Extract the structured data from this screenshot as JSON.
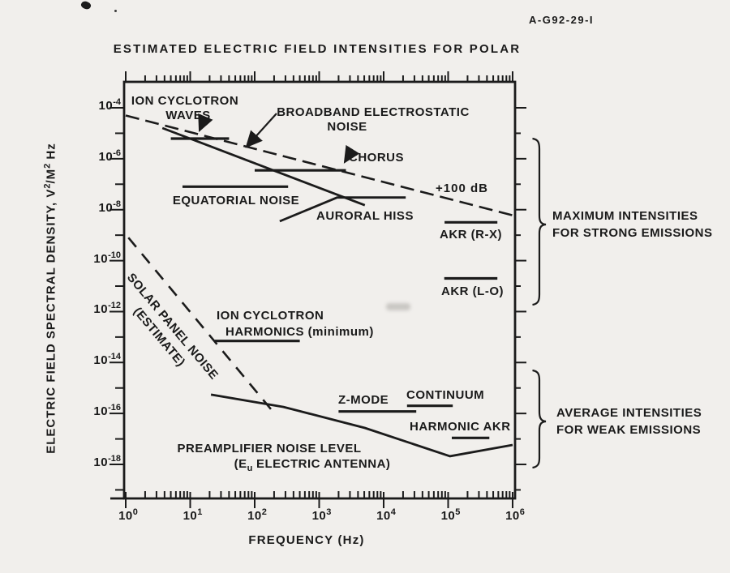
{
  "figure_id": "A-G92-29-I",
  "title": "ESTIMATED ELECTRIC FIELD INTENSITIES FOR POLAR",
  "axes": {
    "base": "10",
    "x": {
      "label": "FREQUENCY (Hz)",
      "tick_exponents": [
        0,
        1,
        2,
        3,
        4,
        5,
        6
      ]
    },
    "y": {
      "label_parts": [
        [
          "t",
          "ELECTRIC FIELD SPECTRAL DENSITY,  V"
        ],
        [
          "sup",
          "2"
        ],
        [
          "t",
          "/M"
        ],
        [
          "sup",
          "2"
        ],
        [
          "t",
          " Hz"
        ]
      ],
      "tick_exponents": [
        -4,
        -6,
        -8,
        -10,
        -12,
        -14,
        -16,
        -18
      ],
      "minor_exponents": [
        -5,
        -7,
        -9,
        -11,
        -13,
        -15,
        -17,
        -19
      ]
    }
  },
  "annotations": {
    "ion_cyclotron_waves_1": "ION CYCLOTRON",
    "ion_cyclotron_waves_2": "WAVES",
    "broadband_1": "BROADBAND ELECTROSTATIC",
    "broadband_2": "NOISE",
    "chorus": "CHORUS",
    "equatorial": "EQUATORIAL NOISE",
    "auroral": "AURORAL HISS",
    "plus100db": "+100 dB",
    "akr_rx": "AKR (R-X)",
    "akr_lo": "AKR (L-O)",
    "solar_1": "SOLAR PANEL NOISE",
    "solar_2": "(ESTIMATE)",
    "harmonics_1": "ION CYCLOTRON",
    "harmonics_2": "HARMONICS (minimum)",
    "zmode": "Z-MODE",
    "continuum": "CONTINUUM",
    "harmonic_akr": "HARMONIC AKR",
    "preamp_1": "PREAMPLIFIER NOISE LEVEL",
    "preamp_2_parts": [
      [
        "t",
        "(E"
      ],
      [
        "sub",
        "u"
      ],
      [
        "t",
        " ELECTRIC ANTENNA)"
      ]
    ],
    "brace_max_1": "MAXIMUM INTENSITIES",
    "brace_max_2": "FOR STRONG EMISSIONS",
    "brace_avg_1": "AVERAGE INTENSITIES",
    "brace_avg_2": "FOR WEAK EMISSIONS"
  },
  "chart_data": {
    "type": "line",
    "title": "ESTIMATED ELECTRIC FIELD INTENSITIES FOR POLAR",
    "xlabel": "FREQUENCY (Hz)",
    "ylabel": "ELECTRIC FIELD SPECTRAL DENSITY, V^2/M^2 Hz",
    "x_scale": "log",
    "y_scale": "log",
    "x_range": [
      1,
      1000000
    ],
    "y_range": [
      1e-19,
      0.001
    ],
    "grid": false,
    "series": [
      {
        "id": "plus-100-db",
        "name": "+100 dB reference",
        "style": "dashed",
        "dash": "17 8",
        "width": 2.6,
        "points": [
          [
            1,
            5e-05
          ],
          [
            1000000,
            6e-09
          ]
        ]
      },
      {
        "id": "ion-cyclotron-waves",
        "name": "Ion cyclotron waves",
        "style": "solid",
        "width": 3.2,
        "points": [
          [
            5,
            6.2e-06
          ],
          [
            40,
            6.2e-06
          ]
        ]
      },
      {
        "id": "broadband-electrostatic-noise",
        "name": "Broadband electrostatic noise",
        "style": "solid",
        "width": 2.8,
        "points": [
          [
            3.7,
            1.6e-05
          ],
          [
            5100,
            1.5e-08
          ]
        ]
      },
      {
        "id": "chorus",
        "name": "Chorus",
        "style": "solid",
        "width": 3.2,
        "points": [
          [
            100,
            3.5e-07
          ],
          [
            2600,
            3.5e-07
          ]
        ]
      },
      {
        "id": "equatorial-noise",
        "name": "Equatorial noise",
        "style": "solid",
        "width": 3.2,
        "points": [
          [
            7.6,
            8e-08
          ],
          [
            330,
            8e-08
          ]
        ]
      },
      {
        "id": "auroral-hiss",
        "name": "Auroral hiss",
        "style": "solid",
        "width": 2.8,
        "points": [
          [
            245,
            3.5e-09
          ],
          [
            1900,
            3e-08
          ],
          [
            22000,
            3e-08
          ]
        ]
      },
      {
        "id": "akr-rx",
        "name": "AKR (R-X)",
        "style": "solid",
        "width": 3.2,
        "points": [
          [
            88000,
            3.2e-09
          ],
          [
            580000,
            3.2e-09
          ]
        ]
      },
      {
        "id": "akr-lo",
        "name": "AKR (L-O)",
        "style": "solid",
        "width": 3.2,
        "points": [
          [
            87000,
            2e-11
          ],
          [
            580000,
            2e-11
          ]
        ]
      },
      {
        "id": "solar-panel-noise",
        "name": "Solar panel noise (estimate)",
        "style": "dashed",
        "dash": "15 11",
        "width": 2.6,
        "points": [
          [
            1.1,
            8e-10
          ],
          [
            210,
            9e-17
          ]
        ]
      },
      {
        "id": "ion-cyclotron-harmonics",
        "name": "Ion cyclotron harmonics (minimum)",
        "style": "solid",
        "width": 3.2,
        "points": [
          [
            24,
            7e-14
          ],
          [
            500,
            7e-14
          ]
        ]
      },
      {
        "id": "z-mode",
        "name": "Z-mode",
        "style": "solid",
        "width": 3.2,
        "points": [
          [
            2000,
            1.2e-16
          ],
          [
            32000,
            1.2e-16
          ]
        ]
      },
      {
        "id": "continuum",
        "name": "Continuum",
        "style": "solid",
        "width": 3.2,
        "points": [
          [
            23000,
            2e-16
          ],
          [
            118000,
            2e-16
          ]
        ]
      },
      {
        "id": "harmonic-akr",
        "name": "Harmonic AKR",
        "style": "solid",
        "width": 3.2,
        "points": [
          [
            114000,
            1.1e-17
          ],
          [
            436000,
            1.1e-17
          ]
        ]
      },
      {
        "id": "preamplifier-noise",
        "name": "Preamplifier noise level (Eu electric antenna)",
        "style": "solid",
        "width": 2.8,
        "points": [
          [
            21,
            5.5e-16
          ],
          [
            280,
            1.8e-16
          ],
          [
            5100,
            2.7e-17
          ],
          [
            107000,
            2.1e-18
          ],
          [
            1000000,
            5.8e-18
          ]
        ]
      }
    ]
  }
}
